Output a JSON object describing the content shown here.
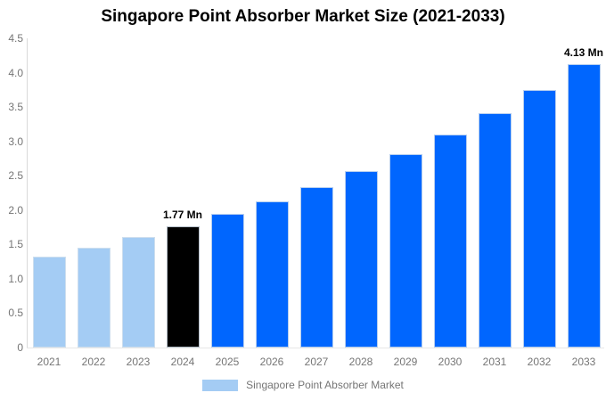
{
  "chart_data": {
    "type": "bar",
    "title": "Singapore Point Absorber Market Size (2021-2033)",
    "categories": [
      "2021",
      "2022",
      "2023",
      "2024",
      "2025",
      "2026",
      "2027",
      "2028",
      "2029",
      "2030",
      "2031",
      "2032",
      "2033"
    ],
    "values": [
      1.32,
      1.45,
      1.61,
      1.77,
      1.94,
      2.13,
      2.34,
      2.57,
      2.82,
      3.1,
      3.41,
      3.75,
      4.13
    ],
    "unit": "Mn",
    "bar_colors": [
      "#a4ccf4",
      "#a4ccf4",
      "#a4ccf4",
      "#000000",
      "#0066fe",
      "#0066fe",
      "#0066fe",
      "#0066fe",
      "#0066fe",
      "#0066fe",
      "#0066fe",
      "#0066fe",
      "#0066fe"
    ],
    "annotations": [
      {
        "index": 3,
        "text": "1.77 Mn"
      },
      {
        "index": 12,
        "text": "4.13 Mn"
      }
    ],
    "xlabel": "",
    "ylabel": "",
    "ylim": [
      0,
      4.5
    ],
    "yticks": [
      {
        "value": 0,
        "label": "0"
      },
      {
        "value": 0.5,
        "label": "0.5"
      },
      {
        "value": 1,
        "label": "1.0"
      },
      {
        "value": 1.5,
        "label": "1.5"
      },
      {
        "value": 2,
        "label": "2.0"
      },
      {
        "value": 2.5,
        "label": "2.5"
      },
      {
        "value": 3,
        "label": "3.0"
      },
      {
        "value": 3.5,
        "label": "3.5"
      },
      {
        "value": 4,
        "label": "4.0"
      },
      {
        "value": 4.5,
        "label": "4.5"
      }
    ],
    "grid": false,
    "legend": {
      "position": "bottom",
      "items": [
        {
          "label": "Singapore Point Absorber Market",
          "color": "#a4ccf4"
        }
      ]
    },
    "colors": {
      "historical": "#a4ccf4",
      "base_year": "#000000",
      "forecast": "#0066fe",
      "axis_text": "#757575",
      "axis_line": "#d9d9d9",
      "baseline": "#e7e7e7",
      "annotation_text": "#000000"
    }
  }
}
